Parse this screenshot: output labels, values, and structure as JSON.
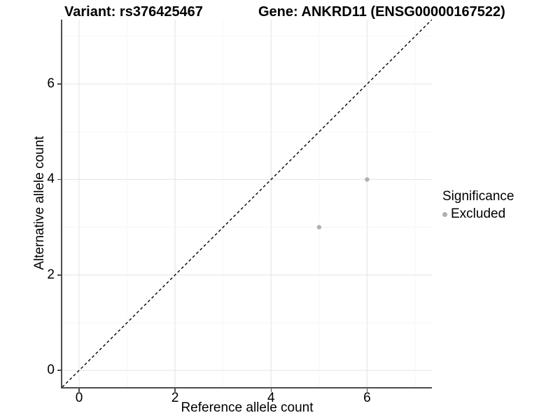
{
  "header": {
    "variant_title": "Variant: rs376425467",
    "gene_title": "Gene: ANKRD11 (ENSG00000167522)"
  },
  "legend": {
    "title": "Significance",
    "items": [
      {
        "label": "Excluded",
        "color": "#b0b0b0",
        "marker": "dot"
      }
    ]
  },
  "chart_data": {
    "type": "scatter",
    "title": "Variant: rs376425467  |  Gene: ANKRD11 (ENSG00000167522)",
    "xlabel": "Reference allele count",
    "ylabel": "Alternative allele count",
    "xlim": [
      -0.35,
      7.35
    ],
    "ylim": [
      -0.35,
      7.35
    ],
    "x_ticks": [
      0,
      2,
      4,
      6
    ],
    "y_ticks": [
      0,
      2,
      4,
      6
    ],
    "x_minor_ticks": [
      1,
      3,
      5,
      7
    ],
    "y_minor_ticks": [
      1,
      3,
      5,
      7
    ],
    "grid": "major and minor gridlines on white background",
    "legend_position": "right",
    "series": [
      {
        "name": "Excluded",
        "color": "#b0b0b0",
        "points": [
          {
            "x": 5,
            "y": 3
          },
          {
            "x": 6,
            "y": 4
          }
        ]
      }
    ],
    "reference_line": {
      "slope": 1,
      "intercept": 0,
      "style": "dashed",
      "color": "#000000"
    }
  },
  "style": {
    "axis_line_color": "#4d4d4d",
    "tick_color": "#4d4d4d",
    "major_grid_color": "#e8e8e8",
    "minor_grid_color": "#f4f4f4",
    "point_radius": 3.2,
    "text_color": "#000000"
  }
}
